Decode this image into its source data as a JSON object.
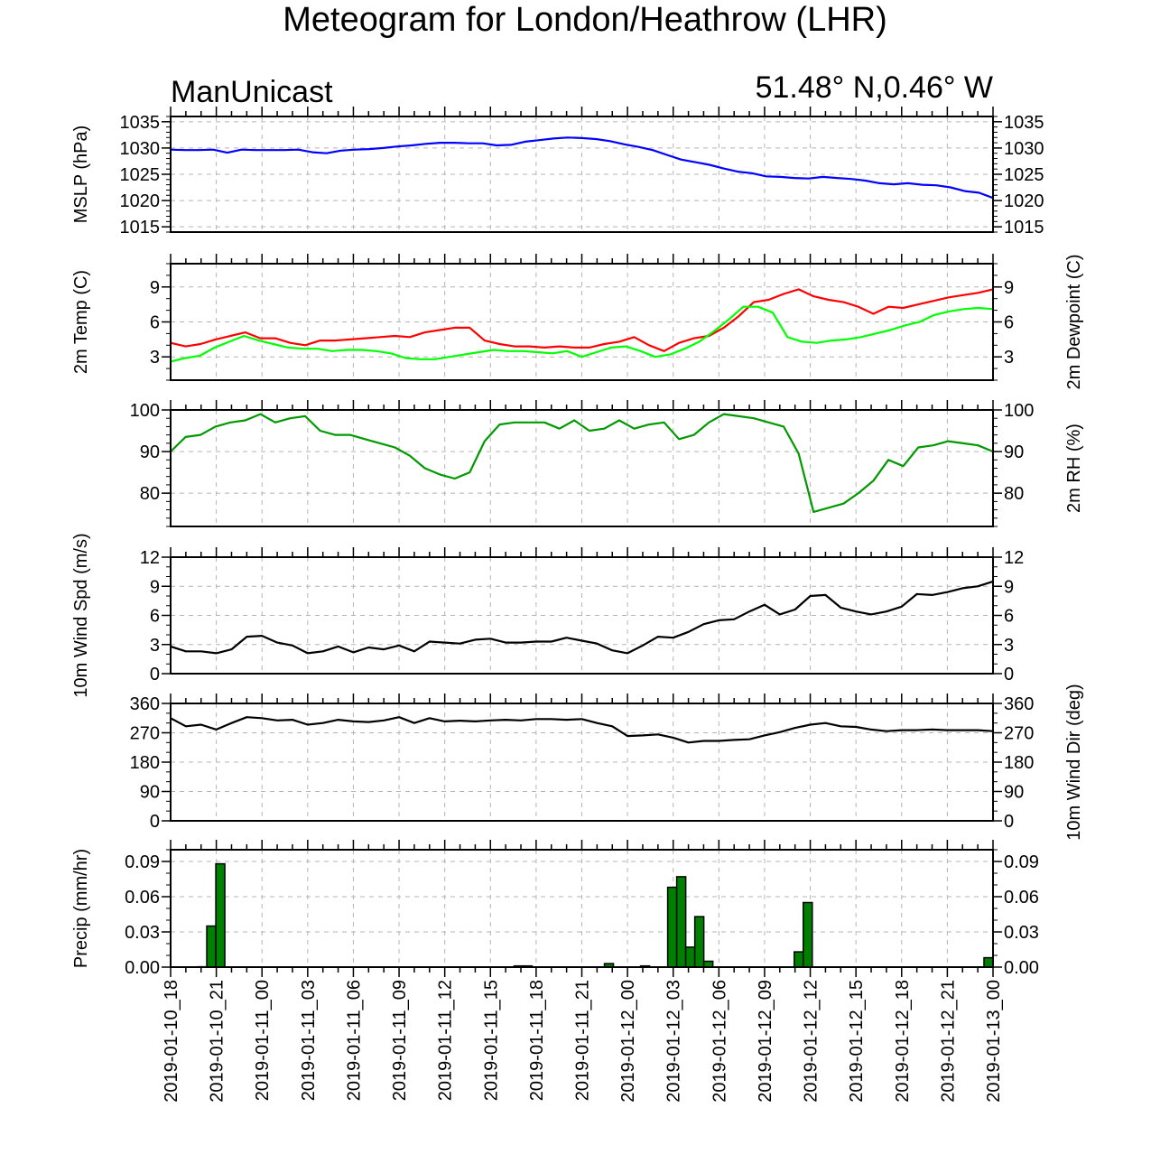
{
  "header": {
    "title": "Meteogram for London/Heathrow (LHR)",
    "model": "ManUnicast",
    "location": "51.48° N,0.46° W"
  },
  "colors": {
    "mslp": "#0000ff",
    "temp": "#ff0000",
    "dewpoint": "#00ff00",
    "rh": "#009900",
    "wind": "#000000",
    "precip_fill": "#008000",
    "grid": "#b4b4b4"
  },
  "chart_data": {
    "type": "line",
    "x_axis": {
      "start": "2019-01-10_18",
      "end": "2019-01-13_00",
      "step_hours": 1,
      "tick_labels": [
        "2019-01-10_18",
        "2019-01-10_21",
        "2019-01-11_00",
        "2019-01-11_03",
        "2019-01-11_06",
        "2019-01-11_09",
        "2019-01-11_12",
        "2019-01-11_15",
        "2019-01-11_18",
        "2019-01-11_21",
        "2019-01-12_00",
        "2019-01-12_03",
        "2019-01-12_06",
        "2019-01-12_09",
        "2019-01-12_12",
        "2019-01-12_15",
        "2019-01-12_18",
        "2019-01-12_21",
        "2019-01-13_00"
      ]
    },
    "panels": [
      {
        "id": "mslp",
        "type": "line",
        "ylabel": "MSLP (hPa)",
        "ylabel_right": "",
        "ylim": [
          1014,
          1036
        ],
        "yticks": [
          1015,
          1020,
          1025,
          1030,
          1035
        ],
        "ytick_labels": [
          "1015",
          "1020",
          "1025",
          "1030",
          "1035"
        ],
        "grid": true,
        "series": [
          {
            "color": "#0000ff",
            "values": [
              1029.7,
              1029.6,
              1029.6,
              1029.7,
              1029.1,
              1029.7,
              1029.6,
              1029.6,
              1029.6,
              1029.7,
              1029.2,
              1029.0,
              1029.5,
              1029.7,
              1029.8,
              1030.0,
              1030.3,
              1030.5,
              1030.8,
              1031.0,
              1031.0,
              1030.9,
              1030.9,
              1030.5,
              1030.6,
              1031.2,
              1031.5,
              1031.8,
              1032.0,
              1031.9,
              1031.7,
              1031.3,
              1030.7,
              1030.2,
              1029.6,
              1028.7,
              1027.8,
              1027.3,
              1026.8,
              1026.1,
              1025.5,
              1025.2,
              1024.6,
              1024.5,
              1024.3,
              1024.2,
              1024.5,
              1024.3,
              1024.1,
              1023.8,
              1023.3,
              1023.1,
              1023.3,
              1023.0,
              1022.9,
              1022.5,
              1021.8,
              1021.5,
              1020.5
            ]
          }
        ]
      },
      {
        "id": "temp",
        "type": "line",
        "ylabel": "2m Temp (C)",
        "ylabel_right": "2m Dewpoint (C)",
        "ylim": [
          1,
          11
        ],
        "yticks": [
          3,
          6,
          9
        ],
        "ytick_labels": [
          "3",
          "6",
          "9"
        ],
        "grid": true,
        "series": [
          {
            "color": "#ff0000",
            "values": [
              4.2,
              3.9,
              4.1,
              4.5,
              4.8,
              5.1,
              4.6,
              4.6,
              4.2,
              4.0,
              4.4,
              4.4,
              4.5,
              4.6,
              4.7,
              4.8,
              4.7,
              5.1,
              5.3,
              5.5,
              5.5,
              4.4,
              4.1,
              3.9,
              3.9,
              3.8,
              3.9,
              3.8,
              3.8,
              4.1,
              4.3,
              4.7,
              4.0,
              3.5,
              4.2,
              4.6,
              4.8,
              5.5,
              6.5,
              7.7,
              7.9,
              8.4,
              8.8,
              8.2,
              7.9,
              7.7,
              7.3,
              6.7,
              7.3,
              7.2,
              7.5,
              7.8,
              8.1,
              8.3,
              8.5,
              8.8
            ]
          },
          {
            "color": "#00ff00",
            "values": [
              2.6,
              2.9,
              3.1,
              3.8,
              4.3,
              4.8,
              4.4,
              4.1,
              3.8,
              3.7,
              3.7,
              3.5,
              3.6,
              3.6,
              3.5,
              3.3,
              2.9,
              2.8,
              2.8,
              3.0,
              3.2,
              3.4,
              3.6,
              3.5,
              3.5,
              3.4,
              3.3,
              3.5,
              3.0,
              3.4,
              3.8,
              3.9,
              3.5,
              3.0,
              3.2,
              3.7,
              4.3,
              5.2,
              6.2,
              7.3,
              7.3,
              6.8,
              4.7,
              4.3,
              4.2,
              4.4,
              4.5,
              4.7,
              5.0,
              5.3,
              5.7,
              6.0,
              6.6,
              6.9,
              7.1,
              7.2,
              7.1
            ]
          }
        ]
      },
      {
        "id": "rh",
        "type": "line",
        "ylabel": "",
        "ylabel_right": "2m RH (%)",
        "ylim": [
          72,
          100
        ],
        "yticks": [
          80,
          90,
          100
        ],
        "ytick_labels": [
          "80",
          "90",
          "100"
        ],
        "grid": true,
        "series": [
          {
            "color": "#009900",
            "values": [
              90.0,
              93.5,
              94.0,
              96.0,
              97.0,
              97.5,
              99.0,
              97.0,
              98.0,
              98.5,
              95.0,
              94.0,
              94.0,
              93.0,
              92.0,
              91.0,
              89.0,
              86.0,
              84.5,
              83.5,
              85.0,
              92.5,
              96.5,
              97.0,
              97.0,
              97.0,
              95.5,
              97.5,
              95.0,
              95.5,
              97.5,
              95.5,
              96.5,
              97.0,
              93.0,
              94.0,
              97.0,
              99.0,
              98.5,
              98.0,
              97.0,
              96.0,
              89.5,
              75.5,
              76.5,
              77.5,
              80.0,
              83.0,
              88.0,
              86.5,
              91.0,
              91.5,
              92.5,
              92.0,
              91.5,
              90.0
            ]
          }
        ]
      },
      {
        "id": "wind_speed",
        "type": "line",
        "ylabel": "10m Wind Spd (m/s)",
        "ylabel_right": "",
        "ylim": [
          0,
          12
        ],
        "yticks": [
          0,
          3,
          6,
          9,
          12
        ],
        "ytick_labels": [
          "0",
          "3",
          "6",
          "9",
          "12"
        ],
        "grid": true,
        "series": [
          {
            "color": "#000000",
            "values": [
              2.8,
              2.3,
              2.3,
              2.1,
              2.5,
              3.8,
              3.9,
              3.2,
              2.9,
              2.1,
              2.3,
              2.8,
              2.2,
              2.7,
              2.5,
              2.9,
              2.3,
              3.3,
              3.2,
              3.1,
              3.5,
              3.6,
              3.2,
              3.2,
              3.3,
              3.3,
              3.7,
              3.4,
              3.1,
              2.4,
              2.1,
              2.9,
              3.8,
              3.7,
              4.3,
              5.1,
              5.5,
              5.6,
              6.4,
              7.1,
              6.1,
              6.6,
              8.0,
              8.1,
              6.8,
              6.4,
              6.1,
              6.4,
              6.9,
              8.2,
              8.1,
              8.4,
              8.8,
              9.0,
              9.5
            ]
          }
        ]
      },
      {
        "id": "wind_dir",
        "type": "line",
        "ylabel": "",
        "ylabel_right": "10m Wind Dir (deg)",
        "ylim": [
          0,
          360
        ],
        "yticks": [
          0,
          90,
          180,
          270,
          360
        ],
        "ytick_labels": [
          "0",
          "90",
          "180",
          "270",
          "360"
        ],
        "grid": true,
        "series": [
          {
            "color": "#000000",
            "values": [
              315,
              290,
              295,
              280,
              300,
              318,
              315,
              308,
              310,
              295,
              300,
              310,
              305,
              303,
              308,
              318,
              300,
              315,
              305,
              307,
              305,
              308,
              310,
              308,
              312,
              312,
              310,
              312,
              300,
              290,
              260,
              262,
              265,
              255,
              240,
              245,
              245,
              248,
              250,
              262,
              272,
              285,
              295,
              300,
              290,
              288,
              280,
              275,
              278,
              278,
              280,
              278,
              278,
              278,
              275
            ]
          }
        ]
      },
      {
        "id": "precip",
        "type": "bar",
        "ylabel": "Precip (mm/hr)",
        "ylabel_right": "",
        "ylim": [
          0,
          0.1
        ],
        "yticks": [
          0,
          0.03,
          0.06,
          0.09
        ],
        "ytick_labels": [
          "0.00",
          "0.03",
          "0.06",
          "0.09"
        ],
        "grid": true,
        "series": [
          {
            "color": "#008000",
            "values": [
              0,
              0,
              0,
              0.0003,
              0.035,
              0.088,
              0,
              0,
              0,
              0,
              0,
              0,
              0,
              0,
              0,
              0,
              0,
              0,
              0,
              0,
              0,
              0,
              0,
              0,
              0,
              0,
              0,
              0,
              0,
              0,
              0,
              0,
              0,
              0,
              0,
              0,
              0,
              0,
              0.001,
              0.001,
              0,
              0,
              0,
              0,
              0,
              0,
              0,
              0,
              0.003,
              0,
              0,
              0,
              0.001,
              0,
              0,
              0.068,
              0.077,
              0.017,
              0.043,
              0.005,
              0,
              0,
              0,
              0,
              0,
              0,
              0,
              0,
              0,
              0.013,
              0.055,
              0,
              0,
              0,
              0,
              0,
              0,
              0,
              0,
              0,
              0,
              0,
              0,
              0,
              0,
              0,
              0,
              0,
              0,
              0,
              0.008
            ]
          }
        ]
      }
    ]
  }
}
